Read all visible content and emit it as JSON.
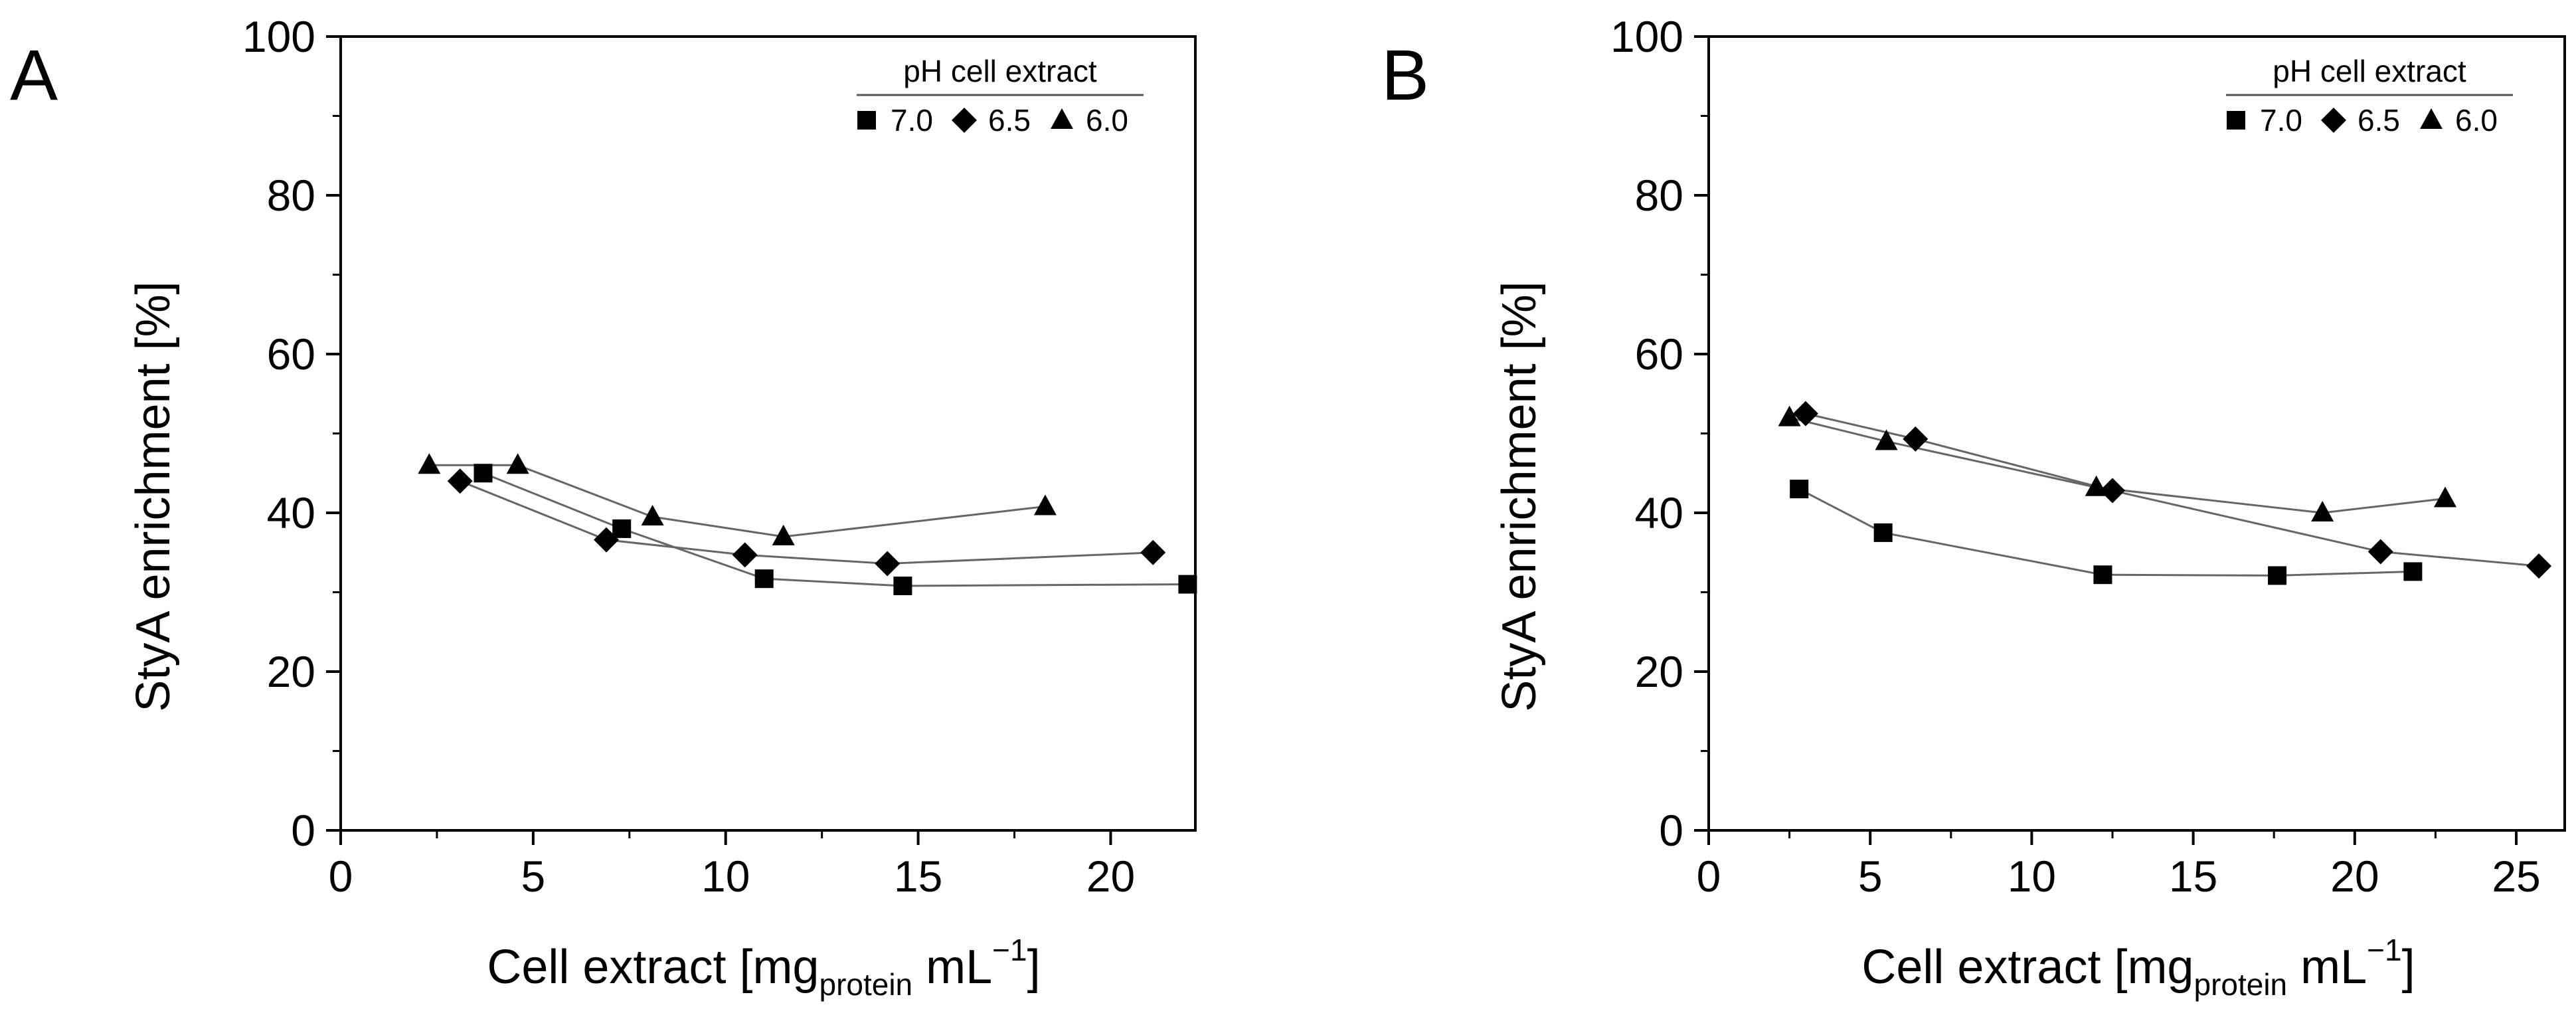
{
  "chart_data": [
    {
      "type": "line",
      "panel_label": "A",
      "xlabel": "Cell extract",
      "xlabel_unit_parts": [
        "[mg",
        "protein",
        " mL",
        "−1",
        "]"
      ],
      "ylabel": "StyA enrichment [%]",
      "xlim": [
        0,
        22.2
      ],
      "ylim": [
        0,
        100
      ],
      "xticks": [
        0,
        5,
        10,
        15,
        20
      ],
      "yticks": [
        0,
        20,
        40,
        60,
        80,
        100
      ],
      "legend": {
        "title": "pH cell extract",
        "position": "top-right"
      },
      "series": [
        {
          "name": "7.0",
          "marker": "square",
          "x": [
            3.7,
            7.3,
            11.0,
            14.6,
            22.0
          ],
          "y": [
            45.0,
            38.0,
            31.7,
            30.8,
            31.0
          ]
        },
        {
          "name": "6.5",
          "marker": "diamond",
          "x": [
            3.1,
            6.9,
            10.5,
            14.2,
            21.1
          ],
          "y": [
            44.0,
            36.6,
            34.7,
            33.6,
            35.0
          ]
        },
        {
          "name": "6.0",
          "marker": "triangle",
          "x": [
            2.3,
            4.6,
            8.1,
            11.5,
            18.3
          ],
          "y": [
            46.0,
            46.0,
            39.5,
            37.0,
            40.8
          ]
        }
      ]
    },
    {
      "type": "line",
      "panel_label": "B",
      "xlabel": "Cell extract",
      "xlabel_unit_parts": [
        "[mg",
        "protein",
        " mL",
        "−1",
        "]"
      ],
      "ylabel": "StyA enrichment [%]",
      "xlim": [
        0,
        26.5
      ],
      "ylim": [
        0,
        100
      ],
      "xticks": [
        0,
        5,
        10,
        15,
        20,
        25
      ],
      "yticks": [
        0,
        20,
        40,
        60,
        80,
        100
      ],
      "legend": {
        "title": "pH cell extract",
        "position": "top-right"
      },
      "series": [
        {
          "name": "7.0",
          "marker": "square",
          "x": [
            2.8,
            5.4,
            12.2,
            17.6,
            21.8
          ],
          "y": [
            43.0,
            37.5,
            32.2,
            32.1,
            32.6
          ]
        },
        {
          "name": "6.5",
          "marker": "diamond",
          "x": [
            3.0,
            6.4,
            12.5,
            20.8,
            25.7
          ],
          "y": [
            52.5,
            49.3,
            42.8,
            35.1,
            33.3
          ]
        },
        {
          "name": "6.0",
          "marker": "triangle",
          "x": [
            2.5,
            5.5,
            12.0,
            19.0,
            22.8
          ],
          "y": [
            52.0,
            49.0,
            43.2,
            40.0,
            41.8
          ]
        }
      ]
    }
  ]
}
